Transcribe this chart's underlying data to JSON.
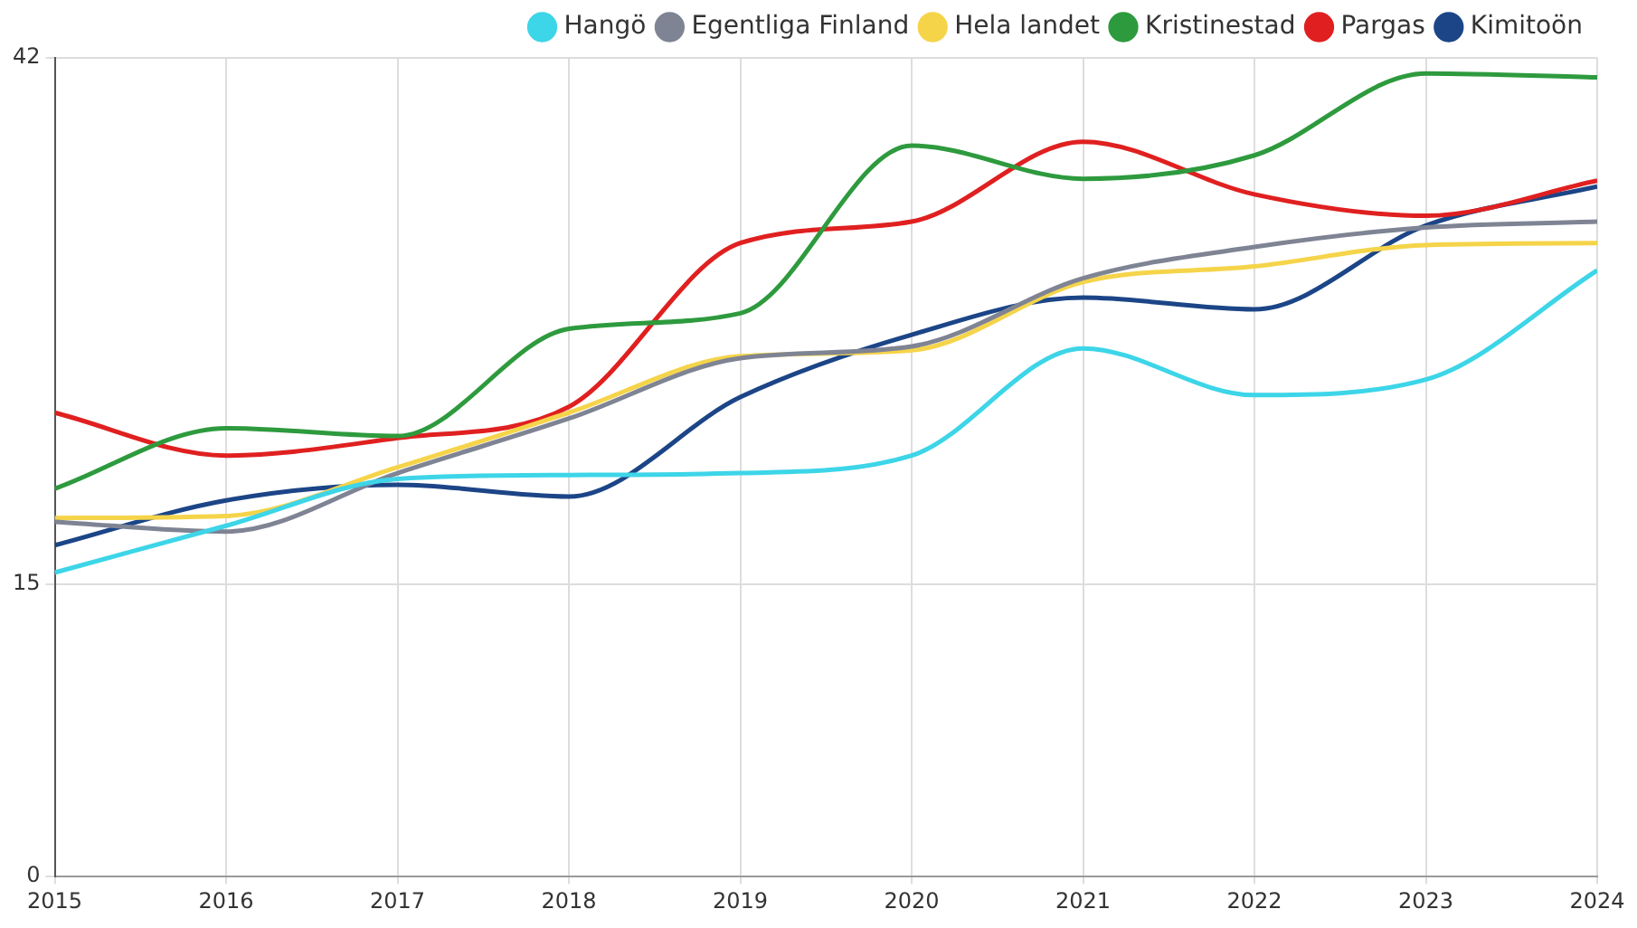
{
  "chart_data": {
    "type": "line",
    "x": [
      2015,
      2016,
      2017,
      2018,
      2019,
      2020,
      2021,
      2022,
      2023,
      2024
    ],
    "xlim": [
      2015,
      2024
    ],
    "xticks": [
      2015,
      2016,
      2017,
      2018,
      2019,
      2020,
      2021,
      2022,
      2023,
      2024
    ],
    "ylim": [
      0,
      42
    ],
    "yticks": [
      0,
      15,
      42
    ],
    "grid": true,
    "legend": "top right",
    "marker": "none",
    "line_style": "solid",
    "series": [
      {
        "name": "Hangö",
        "color": "#3dd5e8",
        "values": [
          15.6,
          18.0,
          20.4,
          20.6,
          20.7,
          21.6,
          27.1,
          24.7,
          25.5,
          31.1
        ]
      },
      {
        "name": "Egentliga Finland",
        "color": "#7f8494",
        "values": [
          18.2,
          17.7,
          20.7,
          23.5,
          26.6,
          27.2,
          30.7,
          32.3,
          33.3,
          33.6
        ]
      },
      {
        "name": "Hela landet",
        "color": "#f5d44a",
        "values": [
          18.4,
          18.5,
          21.0,
          23.8,
          26.7,
          27.0,
          30.5,
          31.3,
          32.4,
          32.5
        ]
      },
      {
        "name": "Kristinestad",
        "color": "#2e9a3e",
        "values": [
          19.9,
          23.0,
          22.6,
          28.1,
          28.9,
          37.5,
          35.8,
          37.0,
          41.2,
          41.0
        ]
      },
      {
        "name": "Pargas",
        "color": "#e02020",
        "values": [
          23.8,
          21.6,
          22.5,
          24.1,
          32.5,
          33.6,
          37.7,
          35.0,
          33.9,
          35.7
        ]
      },
      {
        "name": "Kimitoön",
        "color": "#1c4587",
        "values": [
          17.0,
          19.3,
          20.1,
          19.5,
          24.6,
          27.8,
          29.7,
          29.1,
          33.4,
          35.4
        ]
      }
    ]
  }
}
